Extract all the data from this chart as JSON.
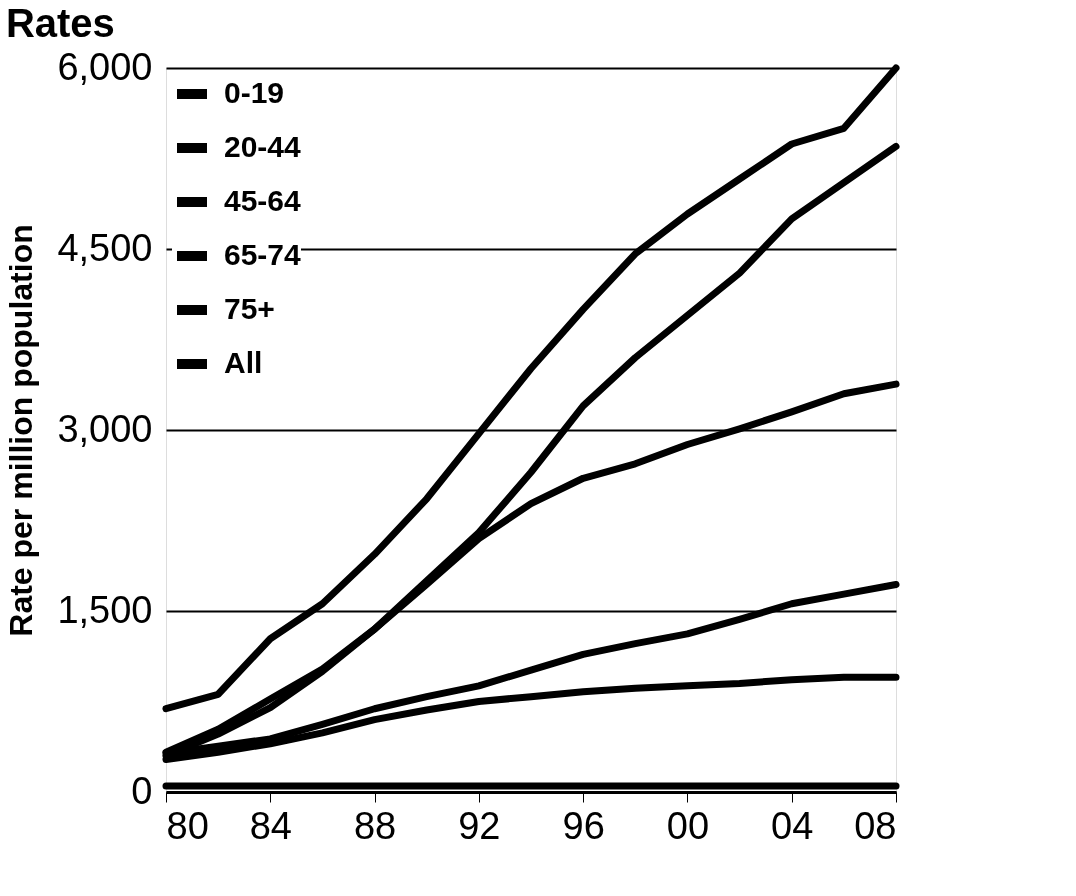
{
  "chart_data": {
    "type": "line",
    "title": "Rates",
    "ylabel": "Rate per million population",
    "x": [
      1980,
      1982,
      1984,
      1986,
      1988,
      1990,
      1992,
      1994,
      1996,
      1998,
      2000,
      2002,
      2004,
      2006,
      2008
    ],
    "series": [
      {
        "name": "0-19",
        "color": "#000000",
        "values": [
          50,
          50,
          50,
          50,
          50,
          50,
          50,
          50,
          50,
          50,
          50,
          50,
          50,
          50,
          50
        ]
      },
      {
        "name": "20-44",
        "color": "#000000",
        "values": [
          270,
          330,
          400,
          490,
          600,
          680,
          750,
          790,
          830,
          860,
          880,
          900,
          930,
          950,
          950
        ]
      },
      {
        "name": "45-64",
        "color": "#000000",
        "values": [
          330,
          520,
          770,
          1020,
          1350,
          1720,
          2100,
          2390,
          2600,
          2720,
          2880,
          3010,
          3150,
          3300,
          3380
        ]
      },
      {
        "name": "65-74",
        "color": "#000000",
        "values": [
          690,
          810,
          1270,
          1560,
          1970,
          2430,
          2970,
          3510,
          4000,
          4460,
          4790,
          5080,
          5370,
          5500,
          6000
        ]
      },
      {
        "name": "75+",
        "color": "#000000",
        "values": [
          300,
          480,
          700,
          1000,
          1350,
          1750,
          2150,
          2650,
          3200,
          3600,
          3950,
          4300,
          4750,
          5050,
          5350
        ]
      },
      {
        "name": "All",
        "color": "#000000",
        "values": [
          320,
          380,
          440,
          560,
          690,
          790,
          880,
          1010,
          1140,
          1230,
          1310,
          1430,
          1560,
          1640,
          1720
        ]
      }
    ],
    "xlim": [
      1980,
      2008
    ],
    "xticks": [
      {
        "value": 1980,
        "label": "80"
      },
      {
        "value": 1984,
        "label": "84"
      },
      {
        "value": 1988,
        "label": "88"
      },
      {
        "value": 1992,
        "label": "92"
      },
      {
        "value": 1996,
        "label": "96"
      },
      {
        "value": 2000,
        "label": "00"
      },
      {
        "value": 2004,
        "label": "04"
      },
      {
        "value": 2008,
        "label": "08"
      }
    ],
    "ylim": [
      0,
      6000
    ],
    "yticks": [
      {
        "value": 0,
        "label": "0"
      },
      {
        "value": 1500,
        "label": "1,500"
      },
      {
        "value": 3000,
        "label": "3,000"
      },
      {
        "value": 4500,
        "label": "4,500"
      },
      {
        "value": 6000,
        "label": "6,000"
      }
    ],
    "grid": "y",
    "legend": "top left",
    "marker": "none",
    "line_style": "solid"
  }
}
